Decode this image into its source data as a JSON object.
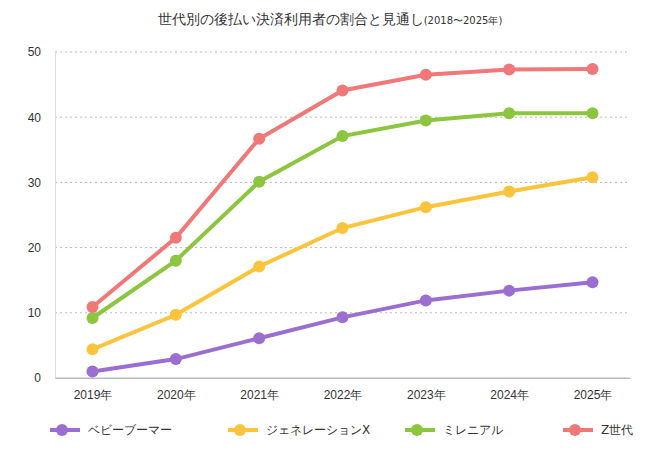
{
  "chart_data": {
    "type": "line",
    "title": "世代別の後払い決済利用者の割合と見通し",
    "subtitle": "(2018〜2025年)",
    "categories": [
      "2019年",
      "2020年",
      "2021年",
      "2022年",
      "2023年",
      "2024年",
      "2025年"
    ],
    "series": [
      {
        "name": "ベビーブーマー",
        "color": "#9b6fd0",
        "values": [
          1.0,
          2.9,
          6.1,
          9.3,
          11.9,
          13.4,
          14.7
        ]
      },
      {
        "name": "ジェネレーションX",
        "color": "#fcc43c",
        "values": [
          4.4,
          9.7,
          17.1,
          23.0,
          26.2,
          28.6,
          30.8
        ]
      },
      {
        "name": "ミレニアル",
        "color": "#8cc63f",
        "values": [
          9.2,
          18.0,
          30.1,
          37.1,
          39.5,
          40.6,
          40.6
        ]
      },
      {
        "name": "Z世代",
        "color": "#f07878",
        "values": [
          10.9,
          21.5,
          36.7,
          44.1,
          46.5,
          47.3,
          47.4
        ]
      }
    ],
    "ylim": [
      0,
      50
    ],
    "yticks": [
      0,
      10,
      20,
      30,
      40,
      50
    ],
    "grid": true,
    "marker": "circle",
    "legend": "bottom"
  }
}
